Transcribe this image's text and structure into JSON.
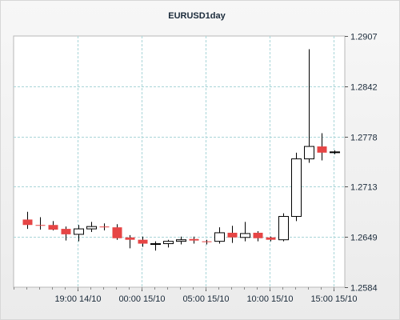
{
  "chart_data": {
    "type": "candlestick",
    "title": "EURUSD1day",
    "y_ticks": [
      "1.2907",
      "1.2842",
      "1.2778",
      "1.2713",
      "1.2649",
      "1.2584"
    ],
    "ylim": [
      1.2584,
      1.2907
    ],
    "x_ticks": [
      "19:00 14/10",
      "00:00 15/10",
      "05:00 15/10",
      "10:00 15/10",
      "15:00 15/10"
    ],
    "grid": true,
    "up_color": "#ffffff",
    "down_color": "#e64545",
    "candles": [
      {
        "o": 1.2671,
        "h": 1.2681,
        "l": 1.2659,
        "c": 1.2664
      },
      {
        "o": 1.2664,
        "h": 1.2674,
        "l": 1.2658,
        "c": 1.2663
      },
      {
        "o": 1.2664,
        "h": 1.2669,
        "l": 1.2657,
        "c": 1.2658
      },
      {
        "o": 1.2659,
        "h": 1.2662,
        "l": 1.2644,
        "c": 1.2652
      },
      {
        "o": 1.2652,
        "h": 1.2664,
        "l": 1.2643,
        "c": 1.2659
      },
      {
        "o": 1.2659,
        "h": 1.2668,
        "l": 1.2655,
        "c": 1.2662
      },
      {
        "o": 1.2662,
        "h": 1.2666,
        "l": 1.2657,
        "c": 1.2661
      },
      {
        "o": 1.2661,
        "h": 1.2665,
        "l": 1.2645,
        "c": 1.2647
      },
      {
        "o": 1.2648,
        "h": 1.2651,
        "l": 1.2634,
        "c": 1.2645
      },
      {
        "o": 1.2645,
        "h": 1.2649,
        "l": 1.2636,
        "c": 1.264
      },
      {
        "o": 1.264,
        "h": 1.2643,
        "l": 1.2631,
        "c": 1.264
      },
      {
        "o": 1.264,
        "h": 1.2645,
        "l": 1.2635,
        "c": 1.2643
      },
      {
        "o": 1.2643,
        "h": 1.2649,
        "l": 1.2639,
        "c": 1.2645
      },
      {
        "o": 1.2646,
        "h": 1.2649,
        "l": 1.264,
        "c": 1.2644
      },
      {
        "o": 1.2643,
        "h": 1.2645,
        "l": 1.2639,
        "c": 1.2642
      },
      {
        "o": 1.2643,
        "h": 1.2661,
        "l": 1.264,
        "c": 1.2654
      },
      {
        "o": 1.2654,
        "h": 1.2663,
        "l": 1.2641,
        "c": 1.2648
      },
      {
        "o": 1.2648,
        "h": 1.2668,
        "l": 1.2643,
        "c": 1.2653
      },
      {
        "o": 1.2654,
        "h": 1.2656,
        "l": 1.2643,
        "c": 1.2647
      },
      {
        "o": 1.2648,
        "h": 1.2649,
        "l": 1.2643,
        "c": 1.2645
      },
      {
        "o": 1.2645,
        "h": 1.2679,
        "l": 1.2643,
        "c": 1.2675
      },
      {
        "o": 1.2675,
        "h": 1.2757,
        "l": 1.2669,
        "c": 1.2749
      },
      {
        "o": 1.2749,
        "h": 1.289,
        "l": 1.2744,
        "c": 1.2765
      },
      {
        "o": 1.2765,
        "h": 1.2782,
        "l": 1.2747,
        "c": 1.2757
      },
      {
        "o": 1.2757,
        "h": 1.276,
        "l": 1.2755,
        "c": 1.2758
      }
    ]
  }
}
